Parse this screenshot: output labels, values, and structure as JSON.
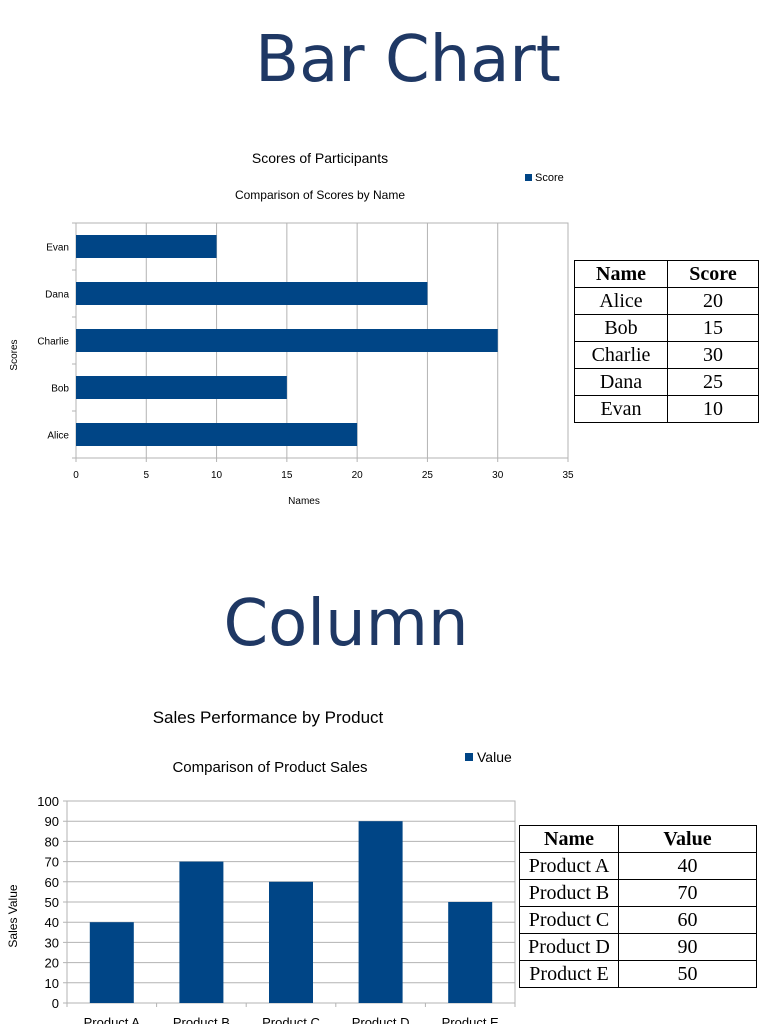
{
  "slide1": {
    "heading": "Bar Chart",
    "table": {
      "headers": [
        "Name",
        "Score"
      ],
      "rows": [
        [
          "Alice",
          "20"
        ],
        [
          "Bob",
          "15"
        ],
        [
          "Charlie",
          "30"
        ],
        [
          "Dana",
          "25"
        ],
        [
          "Evan",
          "10"
        ]
      ]
    }
  },
  "slide2": {
    "heading": "Column",
    "table": {
      "headers": [
        "Name",
        "Value"
      ],
      "rows": [
        [
          "Product A",
          "40"
        ],
        [
          "Product B",
          "70"
        ],
        [
          "Product C",
          "60"
        ],
        [
          "Product D",
          "90"
        ],
        [
          "Product E",
          "50"
        ]
      ]
    }
  },
  "bar_color": "#004586",
  "chart_data": [
    {
      "type": "bar",
      "orientation": "horizontal",
      "title": "Scores of Participants",
      "subtitle": "Comparison of Scores by Name",
      "categories": [
        "Alice",
        "Bob",
        "Charlie",
        "Dana",
        "Evan"
      ],
      "series": [
        {
          "name": "Score",
          "values": [
            20,
            15,
            30,
            25,
            10
          ]
        }
      ],
      "xlabel": "Names",
      "ylabel": "Scores",
      "xlim": [
        0,
        35
      ],
      "ticks": [
        "0",
        "5",
        "10",
        "15",
        "20",
        "25",
        "30",
        "35"
      ],
      "grid": true,
      "legend": "top-right"
    },
    {
      "type": "bar",
      "orientation": "vertical",
      "title": "Sales Performance by Product",
      "subtitle": "Comparison of Product Sales",
      "categories": [
        "Product A",
        "Product B",
        "Product C",
        "Product D",
        "Product E"
      ],
      "series": [
        {
          "name": "Value",
          "values": [
            40,
            70,
            60,
            90,
            50
          ]
        }
      ],
      "xlabel": "",
      "ylabel": "Sales Value",
      "ylim": [
        0,
        100
      ],
      "ticks": [
        "0",
        "10",
        "20",
        "30",
        "40",
        "50",
        "60",
        "70",
        "80",
        "90",
        "100"
      ],
      "grid": true,
      "legend": "top-right"
    }
  ]
}
